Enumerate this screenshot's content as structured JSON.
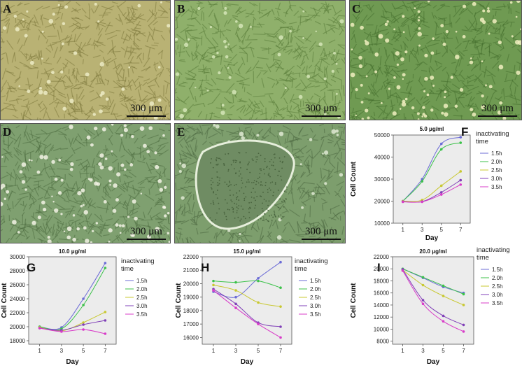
{
  "micrographs": [
    {
      "id": "A",
      "label": "A",
      "scale": "300 μm",
      "bg": "#b9b274",
      "tone": "#7f7a3e",
      "spot": "#ecebc5"
    },
    {
      "id": "B",
      "label": "B",
      "scale": "300 μm",
      "bg": "#8fb06b",
      "tone": "#5a7d3a",
      "spot": "#d6e6b8"
    },
    {
      "id": "C",
      "label": "C",
      "scale": "300 μm",
      "bg": "#6f9a52",
      "tone": "#46702f",
      "spot": "#f1efc0"
    },
    {
      "id": "D",
      "label": "D",
      "scale": "300 μm",
      "bg": "#7fa070",
      "tone": "#4f6e42",
      "spot": "#f2f2e4"
    },
    {
      "id": "E",
      "label": "E",
      "scale": "300 μm",
      "bg": "#7d9e6d",
      "tone": "#4e6a43",
      "spot": "#dfe9d4"
    }
  ],
  "chart_data": [
    {
      "id": "F",
      "label": "F",
      "type": "line",
      "title": "5.0 μg/ml",
      "xlabel": "Day",
      "ylabel": "Cell Count",
      "x": [
        1,
        3,
        5,
        7
      ],
      "xticks": [
        1,
        3,
        5,
        7
      ],
      "ylim": [
        10000,
        50000
      ],
      "yticks": [
        10000,
        20000,
        30000,
        40000,
        50000
      ],
      "legend_title": [
        "inactivating",
        "time"
      ],
      "series": [
        {
          "name": "1.5h",
          "color": "#6b6bd6",
          "values": [
            20000,
            30000,
            46000,
            49000
          ]
        },
        {
          "name": "2.0h",
          "color": "#3cc24a",
          "values": [
            20000,
            29000,
            43500,
            46500
          ]
        },
        {
          "name": "2.5h",
          "color": "#c8c830",
          "values": [
            20000,
            20500,
            27000,
            33500
          ]
        },
        {
          "name": "3.0h",
          "color": "#8040b8",
          "values": [
            19800,
            19800,
            24000,
            29500
          ]
        },
        {
          "name": "3.5h",
          "color": "#d83cc8",
          "values": [
            19700,
            19700,
            23000,
            27500
          ]
        }
      ]
    },
    {
      "id": "G",
      "label": "G",
      "type": "line",
      "title": "10.0 μg/ml",
      "xlabel": "Day",
      "ylabel": "Cell Count",
      "x": [
        1,
        3,
        5,
        7
      ],
      "xticks": [
        1,
        3,
        5,
        7
      ],
      "ylim": [
        17500,
        30000
      ],
      "yticks": [
        18000,
        20000,
        22000,
        24000,
        26000,
        28000,
        30000
      ],
      "legend_title": [
        "inactivating",
        "time"
      ],
      "series": [
        {
          "name": "1.5h",
          "color": "#6b6bd6",
          "values": [
            20000,
            19900,
            24000,
            29100
          ]
        },
        {
          "name": "2.0h",
          "color": "#3cc24a",
          "values": [
            20000,
            19700,
            23100,
            28400
          ]
        },
        {
          "name": "2.5h",
          "color": "#c8c830",
          "values": [
            19900,
            19400,
            20600,
            22100
          ]
        },
        {
          "name": "3.0h",
          "color": "#8040b8",
          "values": [
            19800,
            19500,
            20300,
            20900
          ]
        },
        {
          "name": "3.5h",
          "color": "#d83cc8",
          "values": [
            19800,
            19300,
            19600,
            19000
          ]
        }
      ]
    },
    {
      "id": "H",
      "label": "H",
      "type": "line",
      "title": "15.0 μg/ml",
      "xlabel": "Day",
      "ylabel": "Cell Count",
      "x": [
        1,
        3,
        5,
        7
      ],
      "xticks": [
        1,
        3,
        5,
        7
      ],
      "ylim": [
        15500,
        22000
      ],
      "yticks": [
        16000,
        17000,
        18000,
        19000,
        20000,
        21000,
        22000
      ],
      "legend_title": [
        "inactivating",
        "time"
      ],
      "series": [
        {
          "name": "1.5h",
          "color": "#6b6bd6",
          "values": [
            19400,
            19000,
            20400,
            21600
          ]
        },
        {
          "name": "2.0h",
          "color": "#3cc24a",
          "values": [
            20200,
            20100,
            20200,
            19700
          ]
        },
        {
          "name": "2.5h",
          "color": "#c8c830",
          "values": [
            19900,
            19500,
            18600,
            18300
          ]
        },
        {
          "name": "3.0h",
          "color": "#8040b8",
          "values": [
            19600,
            18500,
            17100,
            16800
          ]
        },
        {
          "name": "3.5h",
          "color": "#d83cc8",
          "values": [
            19500,
            18200,
            17000,
            16000
          ]
        }
      ]
    },
    {
      "id": "I",
      "label": "I",
      "type": "line",
      "title": "20.0 μg/ml",
      "xlabel": "Day",
      "ylabel": "Cell Count",
      "x": [
        1,
        3,
        5,
        7
      ],
      "xticks": [
        1,
        3,
        5,
        7
      ],
      "ylim": [
        7500,
        22000
      ],
      "yticks": [
        8000,
        10000,
        12000,
        14000,
        16000,
        18000,
        20000,
        22000
      ],
      "legend_title": [
        "inactivating",
        "time"
      ],
      "series": [
        {
          "name": "1.5h",
          "color": "#6b6bd6",
          "values": [
            20000,
            18500,
            17000,
            16000
          ]
        },
        {
          "name": "2.0h",
          "color": "#3cc24a",
          "values": [
            20000,
            18600,
            17200,
            15800
          ]
        },
        {
          "name": "2.5h",
          "color": "#c8c830",
          "values": [
            19800,
            17300,
            15500,
            14000
          ]
        },
        {
          "name": "3.0h",
          "color": "#8040b8",
          "values": [
            19900,
            14800,
            12200,
            10700
          ]
        },
        {
          "name": "3.5h",
          "color": "#d83cc8",
          "values": [
            19700,
            14200,
            11300,
            9600
          ]
        }
      ]
    }
  ]
}
